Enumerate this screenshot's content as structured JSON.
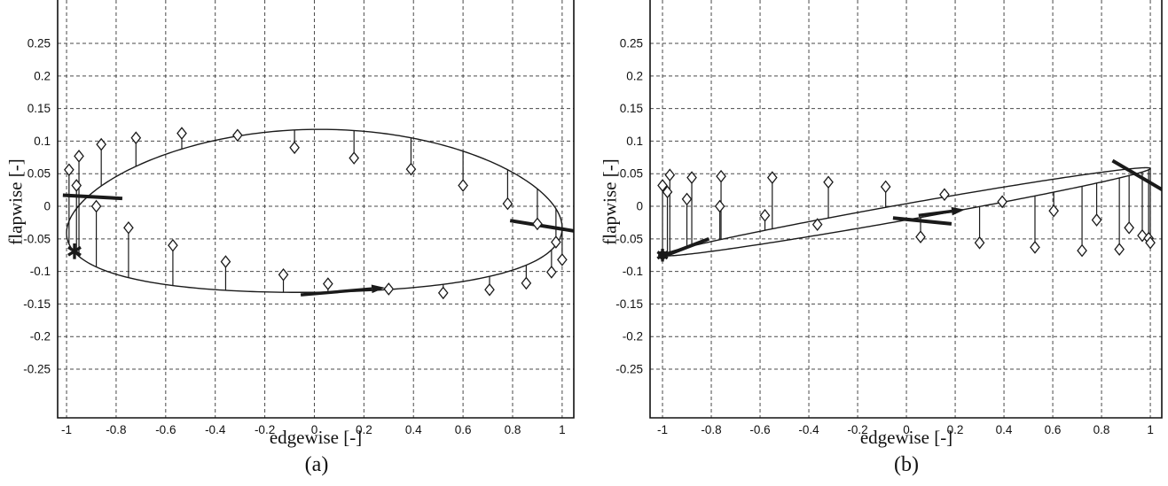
{
  "figure": {
    "background": "#ffffff",
    "line_color": "#1a1a1a",
    "grid_color": "#4a4a4a",
    "marker_style": "open-diamond"
  },
  "chart_data": [
    {
      "id": "a",
      "type": "line",
      "caption": "(a)",
      "xlabel": "edgewise [-]",
      "ylabel": "flapwise [-]",
      "xlim": [
        -1.036,
        1.047
      ],
      "ylim": [
        -0.3247,
        0.3166
      ],
      "grid": true,
      "xticks": [
        -1,
        -0.8,
        -0.6,
        -0.4,
        -0.2,
        0,
        0.2,
        0.4,
        0.6,
        0.8,
        1
      ],
      "xtick_labels": [
        "-1",
        "-0.8",
        "-0.6",
        "-0.4",
        "-0.2",
        "0",
        "0.2",
        "0.4",
        "0.6",
        "0.8",
        "1"
      ],
      "yticks": [
        0.25,
        0.2,
        0.15,
        0.1,
        0.05,
        0,
        -0.05,
        -0.1,
        -0.15,
        -0.2,
        -0.25
      ],
      "ytick_labels": [
        "0.25",
        "0.2",
        "0.15",
        "0.1",
        "0.05",
        "0",
        "-0.05",
        "-0.1",
        "-0.15",
        "-0.2",
        "-0.25"
      ],
      "loop": {
        "amp_sin": 0.125,
        "tilt_cos": 0.004,
        "sag": 0.03,
        "offset": -0.007
      },
      "stems": [
        [
          -0.99,
          0.056,
          "l"
        ],
        [
          -0.95,
          0.077,
          "l"
        ],
        [
          -0.96,
          0.032,
          "l"
        ],
        [
          -0.86,
          0.095,
          "u"
        ],
        [
          -0.72,
          0.105,
          "u"
        ],
        [
          -0.535,
          0.112,
          "u"
        ],
        [
          -0.31,
          0.109,
          "u"
        ],
        [
          -0.08,
          0.09,
          "u"
        ],
        [
          0.16,
          0.074,
          "u"
        ],
        [
          0.39,
          0.057,
          "u"
        ],
        [
          0.6,
          0.032,
          "u"
        ],
        [
          0.78,
          0.004,
          "u"
        ],
        [
          0.9,
          -0.027,
          "u"
        ],
        [
          0.975,
          -0.055,
          "u"
        ],
        [
          1.0,
          -0.082,
          "u"
        ],
        [
          0.957,
          -0.101,
          "l"
        ],
        [
          0.855,
          -0.118,
          "l"
        ],
        [
          0.707,
          -0.128,
          "l"
        ],
        [
          0.52,
          -0.133,
          "l"
        ],
        [
          0.3,
          -0.127,
          "l"
        ],
        [
          0.055,
          -0.119,
          "l"
        ],
        [
          -0.125,
          -0.105,
          "l"
        ],
        [
          -0.358,
          -0.085,
          "l"
        ],
        [
          -0.571,
          -0.06,
          "l"
        ],
        [
          -0.75,
          -0.033,
          "l"
        ],
        [
          -0.88,
          0.0,
          "l"
        ]
      ],
      "start_marker": {
        "x": -0.968,
        "y": -0.069,
        "style": "asterisk"
      },
      "thick_segments": [
        [
          [
            -1.015,
            0.017
          ],
          [
            -0.775,
            0.012
          ]
        ],
        [
          [
            0.79,
            -0.022
          ],
          [
            1.05,
            -0.038
          ]
        ]
      ],
      "arrow": {
        "from": [
          -0.055,
          -0.136
        ],
        "to": [
          0.285,
          -0.125
        ]
      }
    },
    {
      "id": "b",
      "type": "line",
      "caption": "(b)",
      "xlabel": "edgewise [-]",
      "ylabel": "flapwise [-]",
      "xlim": [
        -1.051,
        1.047
      ],
      "ylim": [
        -0.3247,
        0.3166
      ],
      "grid": true,
      "xticks": [
        -1,
        -0.8,
        -0.6,
        -0.4,
        -0.2,
        0,
        0.2,
        0.4,
        0.6,
        0.8,
        1
      ],
      "xtick_labels": [
        "-1",
        "-0.8",
        "-0.6",
        "-0.4",
        "-0.2",
        "0",
        "0.2",
        "0.4",
        "0.6",
        "0.8",
        "1"
      ],
      "yticks": [
        0.25,
        0.2,
        0.15,
        0.1,
        0.05,
        0,
        -0.05,
        -0.1,
        -0.15,
        -0.2,
        -0.25
      ],
      "ytick_labels": [
        "0.25",
        "0.2",
        "0.15",
        "0.1",
        "0.05",
        "0",
        "-0.05",
        "-0.1",
        "-0.15",
        "-0.2",
        "-0.25"
      ],
      "loop": {
        "amp_sin": 0.0125,
        "tilt_cos": 0.0665,
        "sag": 0,
        "offset": -0.0085
      },
      "stems": [
        [
          -1.0,
          0.032,
          "l"
        ],
        [
          -0.97,
          0.048,
          "l"
        ],
        [
          -0.98,
          0.022,
          "l"
        ],
        [
          -0.88,
          0.044,
          "u"
        ],
        [
          -0.9,
          0.011,
          "u"
        ],
        [
          -0.76,
          0.046,
          "u"
        ],
        [
          -0.765,
          0.0,
          "u"
        ],
        [
          -0.55,
          0.044,
          "u"
        ],
        [
          -0.58,
          -0.014,
          "u"
        ],
        [
          -0.32,
          0.037,
          "u"
        ],
        [
          -0.365,
          -0.028,
          "u"
        ],
        [
          -0.085,
          0.03,
          "u"
        ],
        [
          0.058,
          -0.047,
          "l"
        ],
        [
          0.156,
          0.018,
          "u"
        ],
        [
          0.3,
          -0.056,
          "l"
        ],
        [
          0.393,
          0.007,
          "l"
        ],
        [
          0.527,
          -0.063,
          "l"
        ],
        [
          0.604,
          -0.007,
          "l"
        ],
        [
          0.72,
          -0.068,
          "l"
        ],
        [
          0.78,
          -0.021,
          "l"
        ],
        [
          0.873,
          -0.066,
          "l"
        ],
        [
          0.913,
          -0.033,
          "l"
        ],
        [
          0.967,
          -0.045,
          "l"
        ],
        [
          0.993,
          -0.049,
          "l"
        ],
        [
          1.0,
          -0.056,
          "l"
        ]
      ],
      "start_marker": {
        "x": -1.0,
        "y": -0.075,
        "style": "solid-blob"
      },
      "thick_segments": [
        [
          [
            -1.005,
            -0.078
          ],
          [
            -0.81,
            -0.05
          ]
        ],
        [
          [
            -0.055,
            -0.018
          ],
          [
            0.185,
            -0.027
          ]
        ],
        [
          [
            0.845,
            0.07
          ],
          [
            1.055,
            0.024
          ]
        ]
      ],
      "arrow": {
        "from": [
          0.05,
          -0.014
        ],
        "to": [
          0.24,
          -0.005
        ]
      }
    }
  ]
}
